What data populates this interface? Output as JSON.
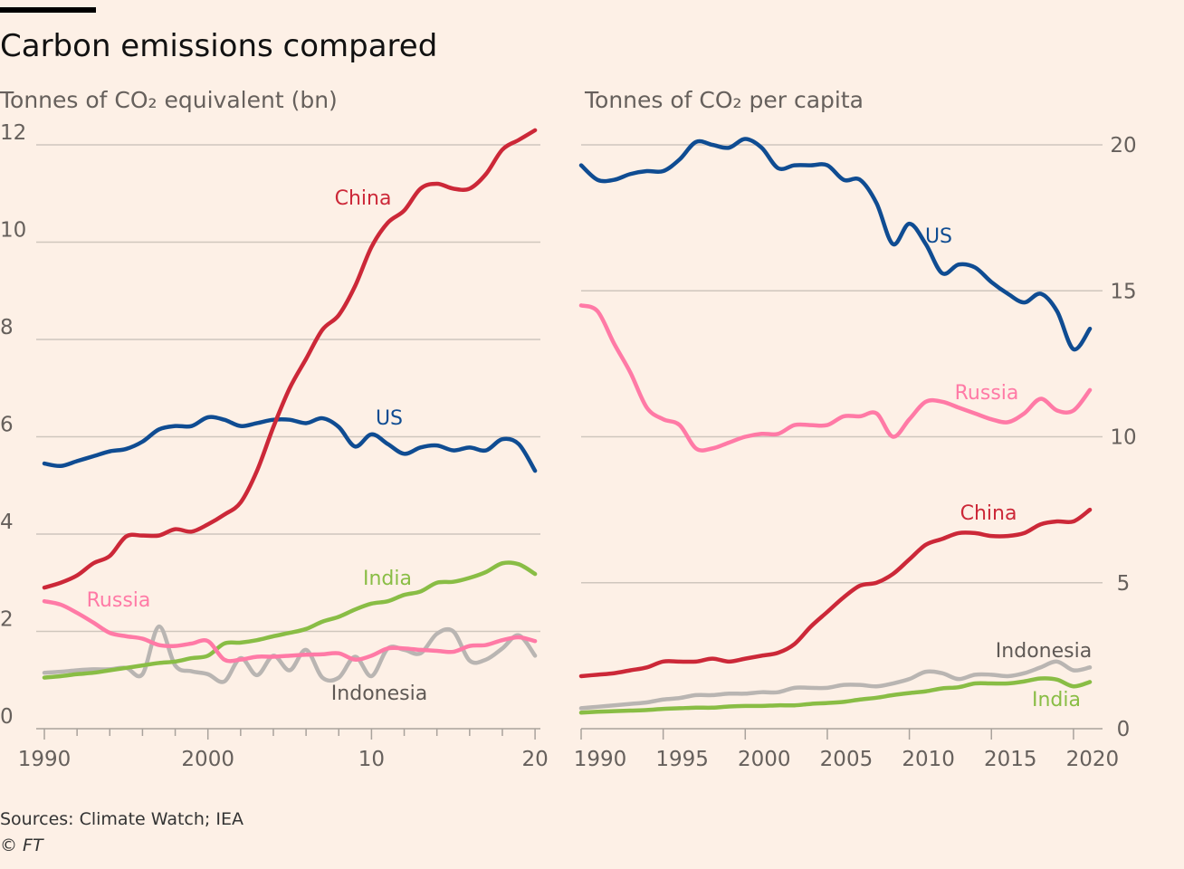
{
  "title": "Carbon emissions compared",
  "source": "Sources: Climate Watch; IEA",
  "credit": "© FT",
  "colors": {
    "China": "#cc2838",
    "US": "#0f4c92",
    "Russia": "#ff7aa6",
    "India": "#89bd45",
    "Indonesia": "#b9b5b2"
  },
  "chart_data": [
    {
      "type": "line",
      "title": "Tonnes of CO₂ equivalent (bn)",
      "ylim": [
        0,
        12
      ],
      "yticks": [
        "0",
        "2",
        "4",
        "6",
        "8",
        "10",
        "12"
      ],
      "xticks": [
        "1990",
        "2000",
        "10",
        "20"
      ],
      "x": [
        1990,
        1991,
        1992,
        1993,
        1994,
        1995,
        1996,
        1997,
        1998,
        1999,
        2000,
        2001,
        2002,
        2003,
        2004,
        2005,
        2006,
        2007,
        2008,
        2009,
        2010,
        2011,
        2012,
        2013,
        2014,
        2015,
        2016,
        2017,
        2018,
        2019,
        2020
      ],
      "series": [
        {
          "name": "China",
          "values": [
            2.9,
            3.0,
            3.15,
            3.4,
            3.55,
            3.95,
            3.97,
            3.97,
            4.1,
            4.05,
            4.2,
            4.4,
            4.65,
            5.3,
            6.2,
            7.0,
            7.6,
            8.2,
            8.5,
            9.1,
            9.9,
            10.4,
            10.65,
            11.1,
            11.2,
            11.1,
            11.1,
            11.4,
            11.9,
            12.1,
            12.3
          ]
        },
        {
          "name": "US",
          "values": [
            5.45,
            5.4,
            5.5,
            5.6,
            5.7,
            5.75,
            5.9,
            6.15,
            6.22,
            6.22,
            6.4,
            6.35,
            6.22,
            6.28,
            6.35,
            6.35,
            6.28,
            6.38,
            6.2,
            5.8,
            6.05,
            5.85,
            5.65,
            5.78,
            5.82,
            5.72,
            5.78,
            5.72,
            5.95,
            5.85,
            5.3
          ]
        },
        {
          "name": "India",
          "values": [
            1.05,
            1.08,
            1.12,
            1.15,
            1.2,
            1.25,
            1.3,
            1.35,
            1.38,
            1.45,
            1.5,
            1.75,
            1.77,
            1.82,
            1.9,
            1.97,
            2.05,
            2.2,
            2.3,
            2.45,
            2.57,
            2.62,
            2.75,
            2.82,
            3.0,
            3.02,
            3.1,
            3.22,
            3.4,
            3.38,
            3.18
          ]
        },
        {
          "name": "Russia",
          "values": [
            2.62,
            2.55,
            2.38,
            2.18,
            1.97,
            1.9,
            1.85,
            1.72,
            1.7,
            1.75,
            1.8,
            1.42,
            1.42,
            1.48,
            1.48,
            1.5,
            1.52,
            1.53,
            1.55,
            1.42,
            1.5,
            1.65,
            1.65,
            1.62,
            1.6,
            1.58,
            1.7,
            1.72,
            1.82,
            1.88,
            1.8
          ]
        },
        {
          "name": "Indonesia",
          "values": [
            1.15,
            1.17,
            1.2,
            1.22,
            1.22,
            1.25,
            1.12,
            2.1,
            1.3,
            1.18,
            1.12,
            0.97,
            1.45,
            1.1,
            1.5,
            1.2,
            1.62,
            1.05,
            1.05,
            1.48,
            1.08,
            1.65,
            1.62,
            1.55,
            1.95,
            2.0,
            1.4,
            1.42,
            1.65,
            1.92,
            1.5
          ]
        }
      ]
    },
    {
      "type": "line",
      "title": "Tonnes of CO₂ per capita",
      "ylim": [
        0,
        20
      ],
      "yticks": [
        "0",
        "5",
        "10",
        "15",
        "20"
      ],
      "xticks": [
        "1990",
        "1995",
        "2000",
        "2005",
        "2010",
        "2015",
        "2020"
      ],
      "x": [
        1990,
        1991,
        1992,
        1993,
        1994,
        1995,
        1996,
        1997,
        1998,
        1999,
        2000,
        2001,
        2002,
        2003,
        2004,
        2005,
        2006,
        2007,
        2008,
        2009,
        2010,
        2011,
        2012,
        2013,
        2014,
        2015,
        2016,
        2017,
        2018,
        2019,
        2020,
        2021
      ],
      "series": [
        {
          "name": "US",
          "values": [
            19.3,
            18.8,
            18.8,
            19.0,
            19.1,
            19.1,
            19.5,
            20.1,
            20.0,
            19.9,
            20.2,
            19.9,
            19.2,
            19.3,
            19.3,
            19.3,
            18.8,
            18.8,
            18.0,
            16.6,
            17.3,
            16.6,
            15.6,
            15.9,
            15.8,
            15.3,
            14.9,
            14.6,
            14.9,
            14.3,
            13.0,
            13.7
          ]
        },
        {
          "name": "Russia",
          "values": [
            14.5,
            14.3,
            13.2,
            12.2,
            11.0,
            10.6,
            10.4,
            9.6,
            9.6,
            9.8,
            10.0,
            10.1,
            10.1,
            10.4,
            10.4,
            10.4,
            10.7,
            10.7,
            10.8,
            10.0,
            10.6,
            11.2,
            11.2,
            11.0,
            10.8,
            10.6,
            10.5,
            10.8,
            11.3,
            10.9,
            10.9,
            11.6
          ]
        },
        {
          "name": "China",
          "values": [
            1.8,
            1.85,
            1.9,
            2.0,
            2.1,
            2.3,
            2.3,
            2.3,
            2.4,
            2.3,
            2.4,
            2.5,
            2.6,
            2.9,
            3.5,
            4.0,
            4.5,
            4.9,
            5.0,
            5.3,
            5.8,
            6.3,
            6.5,
            6.7,
            6.7,
            6.6,
            6.6,
            6.7,
            7.0,
            7.1,
            7.1,
            7.5
          ]
        },
        {
          "name": "Indonesia",
          "values": [
            0.7,
            0.75,
            0.8,
            0.85,
            0.9,
            1.0,
            1.05,
            1.15,
            1.15,
            1.2,
            1.2,
            1.25,
            1.25,
            1.4,
            1.4,
            1.4,
            1.5,
            1.5,
            1.45,
            1.55,
            1.7,
            1.95,
            1.9,
            1.7,
            1.85,
            1.85,
            1.8,
            1.9,
            2.1,
            2.3,
            2.0,
            2.1
          ]
        },
        {
          "name": "India",
          "values": [
            0.55,
            0.58,
            0.6,
            0.62,
            0.64,
            0.68,
            0.7,
            0.72,
            0.72,
            0.76,
            0.78,
            0.78,
            0.8,
            0.8,
            0.85,
            0.88,
            0.92,
            1.0,
            1.06,
            1.15,
            1.22,
            1.28,
            1.38,
            1.42,
            1.55,
            1.55,
            1.55,
            1.62,
            1.72,
            1.68,
            1.45,
            1.6
          ]
        }
      ]
    }
  ]
}
